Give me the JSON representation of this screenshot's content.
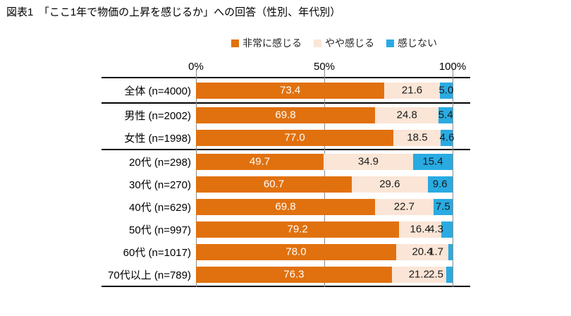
{
  "title": "図表1　「ここ1年で物価の上昇を感じるか」への回答（性別、年代別）",
  "chart_data": {
    "type": "bar",
    "stacked": true,
    "orientation": "horizontal",
    "title": "図表1　「ここ1年で物価の上昇を感じるか」への回答（性別、年代別）",
    "categories": [
      "全体 (n=4000)",
      "男性 (n=2002)",
      "女性 (n=1998)",
      "20代 (n=298)",
      "30代 (n=270)",
      "40代 (n=629)",
      "50代 (n=997)",
      "60代 (n=1017)",
      "70代以上 (n=789)"
    ],
    "series": [
      {
        "name": "非常に感じる",
        "key": "strongly-feel",
        "color": "#E1710E",
        "label_color": "#FFFFFF",
        "values": [
          73.4,
          69.8,
          77.0,
          49.7,
          60.7,
          69.8,
          79.2,
          78.0,
          76.3
        ]
      },
      {
        "name": "やや感じる",
        "key": "somewhat-feel",
        "color": "#FBE5D6",
        "label_color": "#1A1A1A",
        "values": [
          21.6,
          24.8,
          18.5,
          34.9,
          29.6,
          22.7,
          16.4,
          20.4,
          21.2
        ]
      },
      {
        "name": "感じない",
        "key": "not-feel",
        "color": "#29ABE2",
        "label_color": "#1A1A1A",
        "values": [
          5.0,
          5.4,
          4.6,
          15.4,
          9.6,
          7.5,
          4.3,
          1.7,
          2.5
        ]
      }
    ],
    "xlim": [
      0,
      100
    ],
    "x_ticks": [
      "0%",
      "50%",
      "100%"
    ],
    "legend_position": "top",
    "row_groups": [
      [
        0
      ],
      [
        1,
        2
      ],
      [
        3,
        4,
        5,
        6,
        7,
        8
      ]
    ],
    "small_label_threshold": 4.5
  }
}
